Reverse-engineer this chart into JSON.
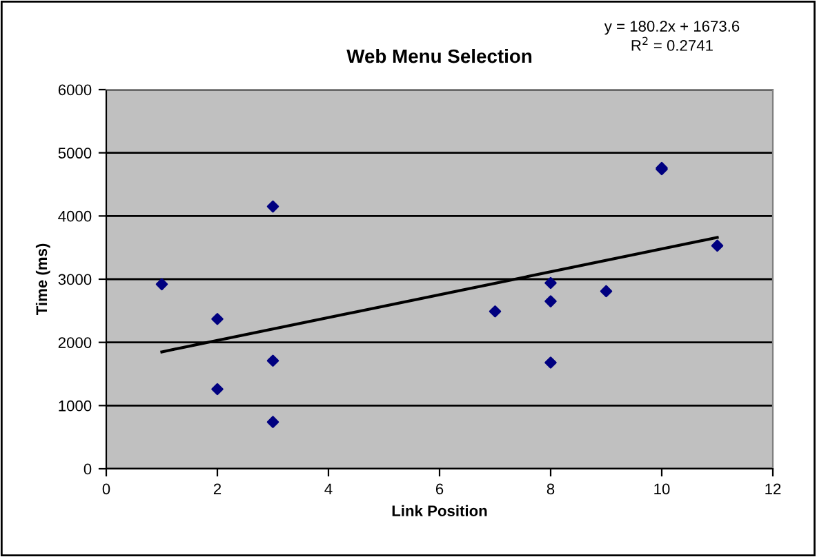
{
  "chart_data": {
    "type": "scatter",
    "title": "Web Menu Selection",
    "xlabel": "Link Position",
    "ylabel": "Time (ms)",
    "annotations": [
      "y = 180.2x + 1673.6",
      "R$^{2}$ = 0.2741"
    ],
    "series": [
      {
        "color": "#000080",
        "marker": "diamond",
        "x": [
          1,
          2,
          2,
          3,
          3,
          3,
          7,
          8,
          8,
          8,
          9,
          10,
          10,
          11
        ],
        "values": [
          2920,
          2370,
          1260,
          4150,
          1710,
          740,
          2490,
          2940,
          2650,
          1680,
          2810,
          4760,
          4740,
          3530
        ]
      },
      {
        "type": "line",
        "color": "#000000",
        "marker": "none",
        "line_style": "solid",
        "x": [
          1,
          11
        ],
        "values": [
          1850,
          3660
        ]
      }
    ],
    "xlim": [
      0,
      12
    ],
    "xticks": [
      0,
      2,
      4,
      6,
      8,
      10,
      12
    ],
    "ylim": [
      0,
      6000
    ],
    "yticks": [
      0,
      1000,
      2000,
      3000,
      4000,
      5000,
      6000
    ],
    "grid": "y",
    "legend": false
  }
}
